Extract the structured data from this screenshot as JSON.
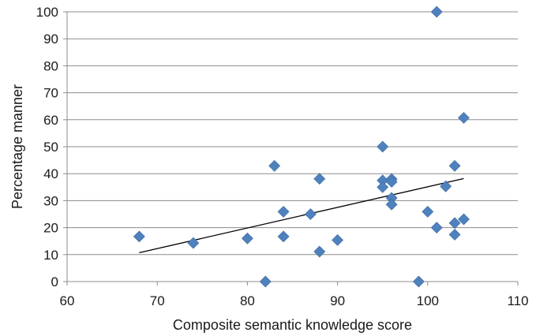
{
  "chart_data": {
    "type": "scatter",
    "title": "",
    "xlabel": "Composite semantic knowledge score",
    "ylabel": "Percentage manner",
    "xlim": [
      60,
      110
    ],
    "ylim": [
      0,
      100
    ],
    "xticks": [
      60,
      70,
      80,
      90,
      100,
      110
    ],
    "yticks": [
      0,
      10,
      20,
      30,
      40,
      50,
      60,
      70,
      80,
      90,
      100
    ],
    "grid": "horizontal",
    "legend": "none",
    "marker": "diamond",
    "marker_color": "#4f81bd",
    "series": [
      {
        "points": [
          [
            68,
            16.7
          ],
          [
            74,
            14.3
          ],
          [
            80,
            16.0
          ],
          [
            82,
            0
          ],
          [
            83,
            42.9
          ],
          [
            84,
            25.9
          ],
          [
            84,
            16.7
          ],
          [
            87,
            25.0
          ],
          [
            88,
            38.1
          ],
          [
            88,
            11.1
          ],
          [
            90,
            15.4
          ],
          [
            95,
            50.0
          ],
          [
            95,
            37.5
          ],
          [
            95,
            35.0
          ],
          [
            96,
            38.0
          ],
          [
            96,
            37.0
          ],
          [
            96,
            31.0
          ],
          [
            96,
            28.6
          ],
          [
            99,
            0
          ],
          [
            100,
            25.9
          ],
          [
            101,
            100
          ],
          [
            101,
            20.0
          ],
          [
            102,
            35.3
          ],
          [
            103,
            42.9
          ],
          [
            103,
            21.7
          ],
          [
            103,
            17.4
          ],
          [
            104,
            60.7
          ],
          [
            104,
            23.1
          ]
        ]
      }
    ],
    "trendline": {
      "type": "linear",
      "x": [
        68,
        104
      ],
      "y": [
        10.7,
        38.2
      ],
      "color": "#000000"
    }
  }
}
